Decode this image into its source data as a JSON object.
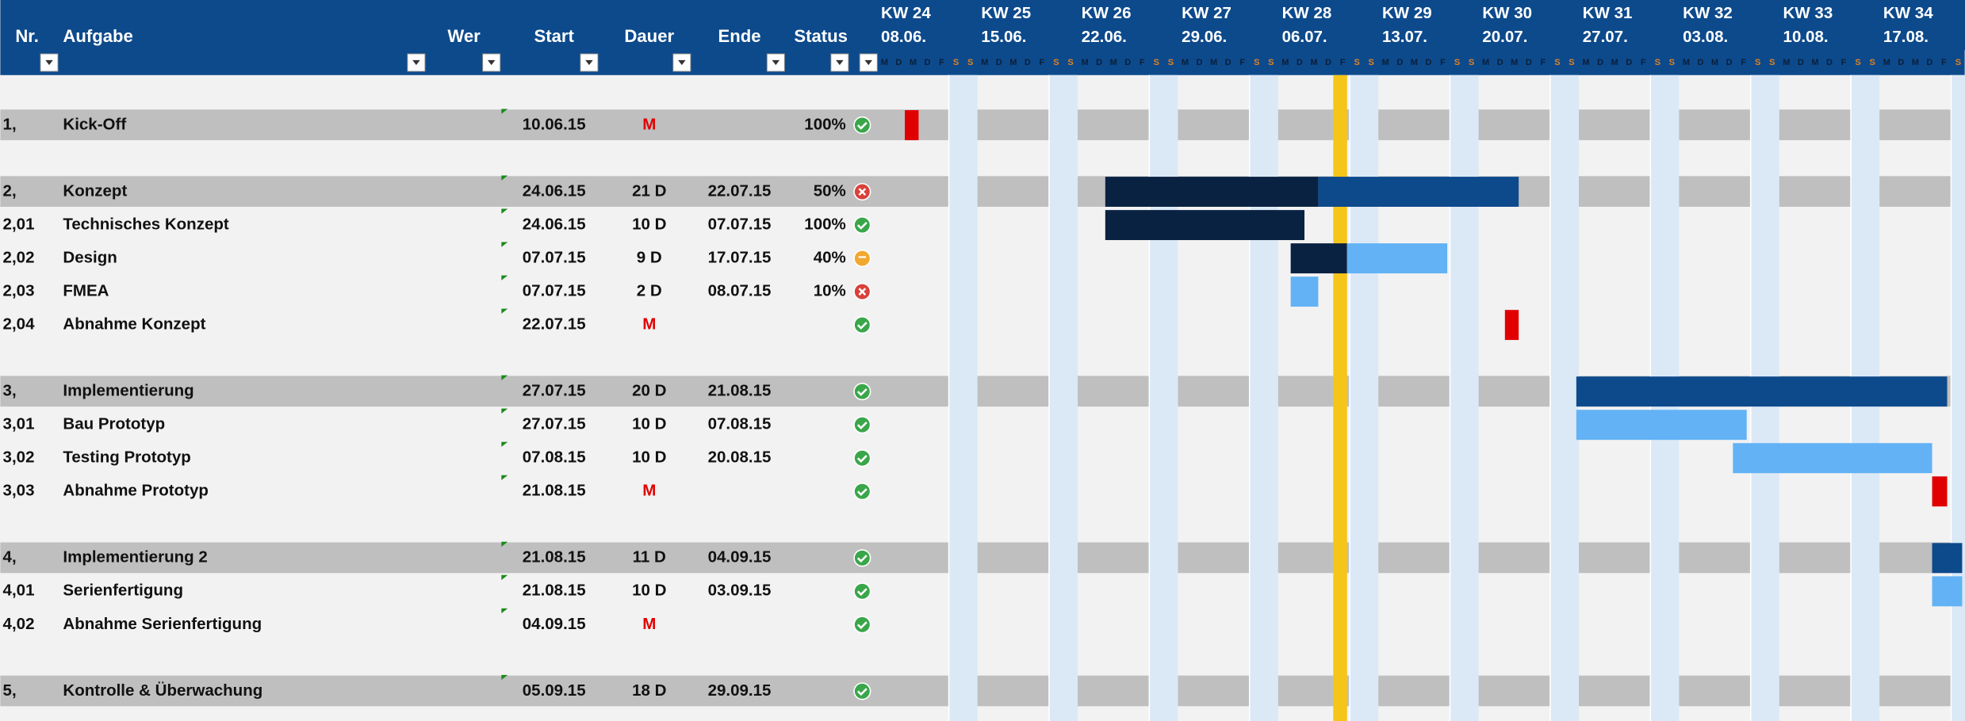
{
  "header": {
    "columns": {
      "nr": "Nr.",
      "task": "Aufgabe",
      "who": "Wer",
      "start": "Start",
      "duration": "Dauer",
      "end": "Ende",
      "status": "Status"
    },
    "weeks": [
      {
        "kw": "KW 24",
        "date": "08.06."
      },
      {
        "kw": "KW 25",
        "date": "15.06."
      },
      {
        "kw": "KW 26",
        "date": "22.06."
      },
      {
        "kw": "KW 27",
        "date": "29.06."
      },
      {
        "kw": "KW 28",
        "date": "06.07."
      },
      {
        "kw": "KW 29",
        "date": "13.07."
      },
      {
        "kw": "KW 30",
        "date": "20.07."
      },
      {
        "kw": "KW 31",
        "date": "27.07."
      },
      {
        "kw": "KW 32",
        "date": "03.08."
      },
      {
        "kw": "KW 33",
        "date": "10.08."
      },
      {
        "kw": "KW 34",
        "date": "17.08."
      }
    ],
    "days": [
      "M",
      "D",
      "M",
      "D",
      "F",
      "S",
      "S"
    ]
  },
  "rows": [
    {
      "nr": "1,",
      "task": "Kick-Off",
      "start": "10.06.15",
      "duration": "M",
      "status": "100%",
      "icon": "ok",
      "summary": true
    },
    {
      "nr": "2,",
      "task": "Konzept",
      "start": "24.06.15",
      "duration": "21 D",
      "end": "22.07.15",
      "status": "50%",
      "icon": "error",
      "summary": true
    },
    {
      "nr": "2,01",
      "task": "Technisches Konzept",
      "start": "24.06.15",
      "duration": "10 D",
      "end": "07.07.15",
      "status": "100%",
      "icon": "ok"
    },
    {
      "nr": "2,02",
      "task": "Design",
      "start": "07.07.15",
      "duration": "9 D",
      "end": "17.07.15",
      "status": "40%",
      "icon": "warn"
    },
    {
      "nr": "2,03",
      "task": "FMEA",
      "start": "07.07.15",
      "duration": "2 D",
      "end": "08.07.15",
      "status": "10%",
      "icon": "error"
    },
    {
      "nr": "2,04",
      "task": "Abnahme Konzept",
      "start": "22.07.15",
      "duration": "M",
      "icon": "ok"
    },
    {
      "nr": "3,",
      "task": "Implementierung",
      "start": "27.07.15",
      "duration": "20 D",
      "end": "21.08.15",
      "icon": "ok",
      "summary": true
    },
    {
      "nr": "3,01",
      "task": "Bau Prototyp",
      "start": "27.07.15",
      "duration": "10 D",
      "end": "07.08.15",
      "icon": "ok"
    },
    {
      "nr": "3,02",
      "task": "Testing Prototyp",
      "start": "07.08.15",
      "duration": "10 D",
      "end": "20.08.15",
      "icon": "ok"
    },
    {
      "nr": "3,03",
      "task": "Abnahme Prototyp",
      "start": "21.08.15",
      "duration": "M",
      "icon": "ok"
    },
    {
      "nr": "4,",
      "task": "Implementierung 2",
      "start": "21.08.15",
      "duration": "11 D",
      "end": "04.09.15",
      "icon": "ok",
      "summary": true
    },
    {
      "nr": "4,01",
      "task": "Serienfertigung",
      "start": "21.08.15",
      "duration": "10 D",
      "end": "03.09.15",
      "icon": "ok"
    },
    {
      "nr": "4,02",
      "task": "Abnahme Serienfertigung",
      "start": "04.09.15",
      "duration": "M",
      "icon": "ok"
    },
    {
      "nr": "5,",
      "task": "Kontrolle & Überwachung",
      "start": "05.09.15",
      "duration": "18 D",
      "end": "29.09.15",
      "icon": "ok",
      "summary": true
    }
  ]
}
